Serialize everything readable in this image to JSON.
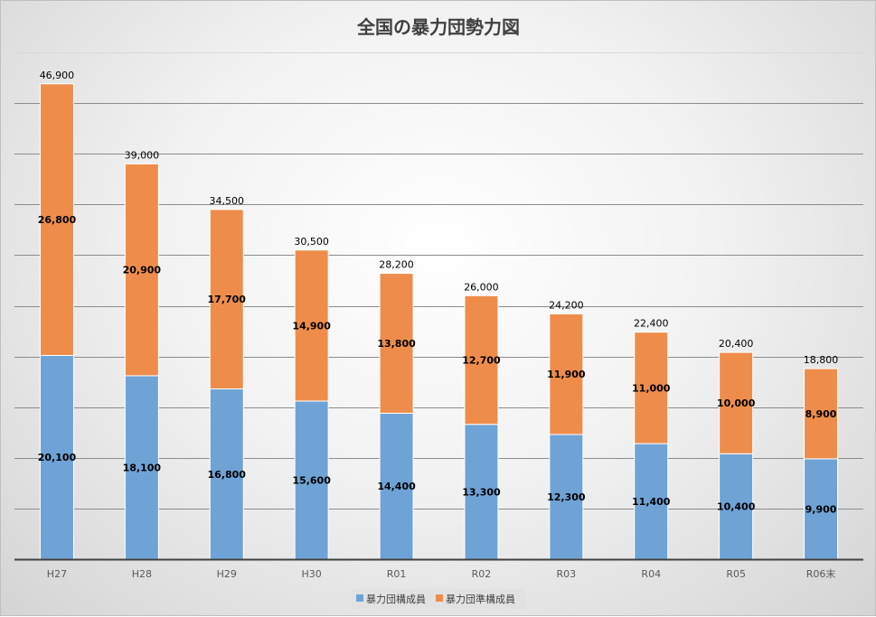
{
  "chart_data": {
    "type": "bar",
    "stacked": true,
    "title": "全国の暴力団勢力図",
    "categories": [
      "H27",
      "H28",
      "H29",
      "H30",
      "R01",
      "R02",
      "R03",
      "R04",
      "R05",
      "R06末"
    ],
    "series": [
      {
        "name": "暴力団構成員",
        "color": "#6fa3d6",
        "values": [
          20100,
          18100,
          16800,
          15600,
          14400,
          13300,
          12300,
          11400,
          10400,
          9900
        ],
        "labels": [
          "20,100",
          "18,100",
          "16,800",
          "15,600",
          "14,400",
          "13,300",
          "12,300",
          "11,400",
          "10,400",
          "9,900"
        ]
      },
      {
        "name": "暴力団準構成員",
        "color": "#ee8d4b",
        "values": [
          26800,
          20900,
          17700,
          14900,
          13800,
          12700,
          11900,
          11000,
          10000,
          8900
        ],
        "labels": [
          "26,800",
          "20,900",
          "17,700",
          "14,900",
          "13,800",
          "12,700",
          "11,900",
          "11,000",
          "10,000",
          "8,900"
        ]
      }
    ],
    "totals": [
      "46,900",
      "39,000",
      "34,500",
      "30,500",
      "28,200",
      "26,000",
      "24,200",
      "22,400",
      "20,400",
      "18,800"
    ],
    "ylim": [
      0,
      50000
    ],
    "y_grid_step": 5000,
    "grid": true,
    "y_axis_labels_shown": false,
    "legend_position": "bottom"
  }
}
